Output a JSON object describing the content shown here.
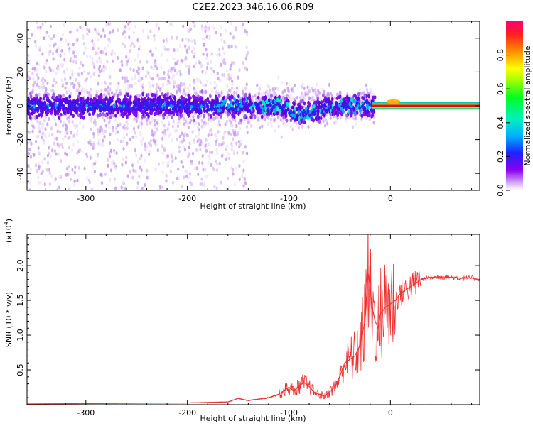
{
  "chart_data": [
    {
      "type": "heatmap",
      "title": "C2E2.2023.346.16.06.R09",
      "xlabel": "Height of straight line (km)",
      "ylabel": "Frequency (Hz)",
      "xlim": [
        -358,
        88
      ],
      "ylim": [
        -50,
        50
      ],
      "xticks": [
        -300,
        -200,
        -100,
        0
      ],
      "xtick_labels": [
        "-300",
        "-200",
        "-100",
        "0"
      ],
      "yticks": [
        -40,
        -20,
        0,
        20,
        40
      ],
      "ytick_labels": [
        "-40",
        "-20",
        "0",
        "20",
        "40"
      ],
      "colorbar": {
        "label": "Normalized spectral amplitude",
        "range": [
          0.0,
          1.0
        ],
        "ticks": [
          0.0,
          0.2,
          0.4,
          0.6,
          0.8
        ],
        "tick_labels": [
          "0.0",
          "0.2",
          "0.4",
          "0.6",
          "0.8"
        ]
      },
      "colors": {
        "low": "#e6d2f5",
        "mid": "#6a00e8",
        "high": "#00e8c8",
        "peak": "#ff2020"
      }
    },
    {
      "type": "line",
      "xlabel": "Height of straight line (km)",
      "ylabel": "SNR (10 * v/v)",
      "scale_label": "(x10",
      "scale_exp": "4",
      "scale_close": ")",
      "xlim": [
        -358,
        88
      ],
      "ylim": [
        0,
        24500
      ],
      "xticks": [
        -300,
        -200,
        -100,
        0
      ],
      "xtick_labels": [
        "-300",
        "-200",
        "-100",
        "0"
      ],
      "yticks": [
        5000,
        10000,
        15000,
        20000
      ],
      "ytick_labels": [
        "0.5",
        "1.0",
        "1.5",
        "2.0"
      ],
      "color": "#f03030",
      "series": [
        {
          "name": "SNR",
          "x": [
            -358,
            -300,
            -200,
            -160,
            -150,
            -140,
            -120,
            -110,
            -100,
            -95,
            -90,
            -85,
            -80,
            -75,
            -70,
            -65,
            -60,
            -55,
            -50,
            -45,
            -40,
            -35,
            -30,
            -25,
            -22,
            -20,
            -18,
            -15,
            -12,
            -10,
            -5,
            0,
            5,
            10,
            15,
            20,
            30,
            40,
            50,
            60,
            70,
            80,
            88
          ],
          "y": [
            100,
            150,
            250,
            400,
            900,
            600,
            1000,
            1500,
            2500,
            2000,
            2700,
            3200,
            2600,
            1800,
            1500,
            1200,
            1800,
            2500,
            4000,
            6000,
            6500,
            7000,
            8500,
            12000,
            19000,
            17000,
            14000,
            12000,
            11000,
            13000,
            14000,
            14500,
            15000,
            16000,
            16500,
            17000,
            18000,
            18300,
            18400,
            18300,
            18200,
            18200,
            18000
          ]
        }
      ]
    }
  ]
}
